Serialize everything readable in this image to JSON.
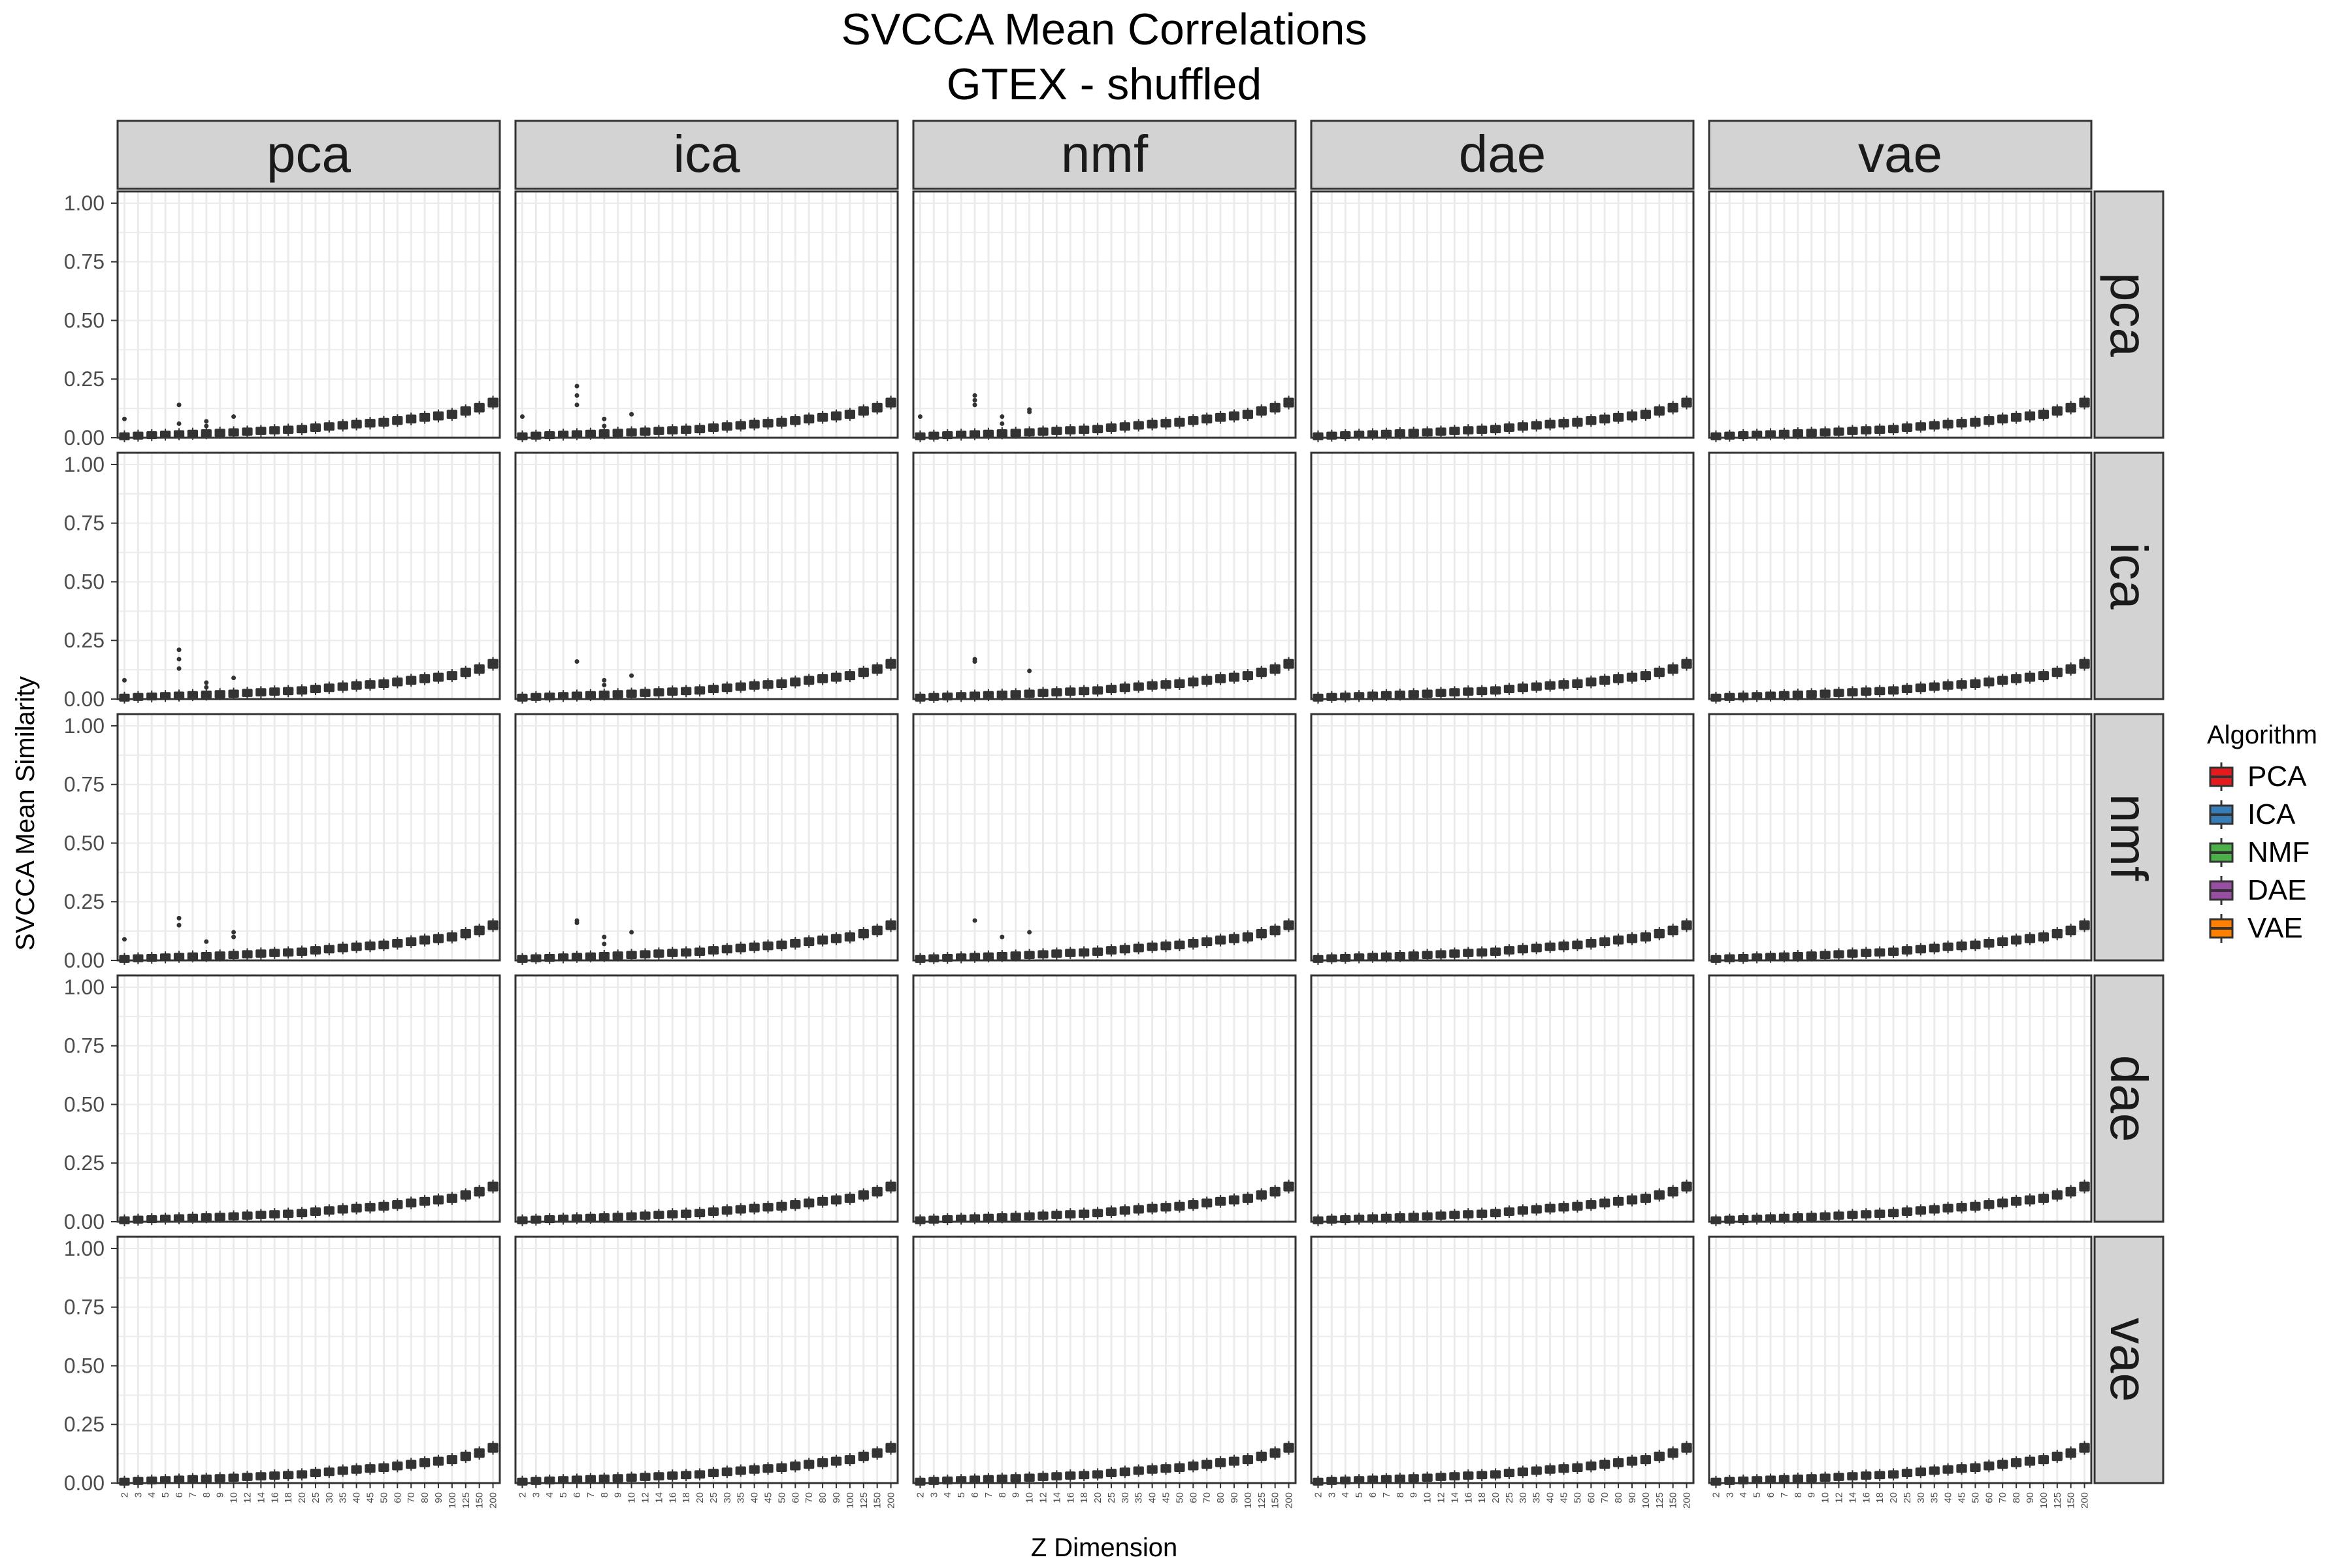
{
  "chart_data": {
    "type": "box",
    "title": "SVCCA Mean Correlations",
    "subtitle": "GTEX - shuffled",
    "xlabel": "Z Dimension",
    "ylabel": "SVCCA Mean Similarity",
    "ylim": [
      0,
      1.05
    ],
    "y_ticks": [
      "0.00",
      "0.25",
      "0.50",
      "0.75",
      "1.00"
    ],
    "y_tick_values": [
      0,
      0.25,
      0.5,
      0.75,
      1.0
    ],
    "grid": true,
    "legend_position": "right",
    "column_facets": [
      "pca",
      "ica",
      "nmf",
      "dae",
      "vae"
    ],
    "row_facets": [
      "pca",
      "ica",
      "nmf",
      "dae",
      "vae"
    ],
    "z_dimensions": [
      "2",
      "3",
      "4",
      "5",
      "6",
      "7",
      "8",
      "9",
      "10",
      "12",
      "14",
      "16",
      "18",
      "20",
      "25",
      "30",
      "35",
      "40",
      "45",
      "50",
      "60",
      "70",
      "80",
      "90",
      "100",
      "125",
      "150",
      "200"
    ],
    "median_similarity": [
      0.006,
      0.009,
      0.011,
      0.013,
      0.015,
      0.017,
      0.019,
      0.021,
      0.023,
      0.026,
      0.029,
      0.032,
      0.034,
      0.037,
      0.043,
      0.048,
      0.053,
      0.058,
      0.062,
      0.066,
      0.073,
      0.08,
      0.087,
      0.093,
      0.1,
      0.114,
      0.128,
      0.15
    ],
    "outliers": [
      {
        "row": "pca",
        "col": "pca",
        "points": [
          [
            "2",
            0.08
          ],
          [
            "6",
            0.14
          ],
          [
            "6",
            0.06
          ],
          [
            "8",
            0.07
          ],
          [
            "8",
            0.05
          ],
          [
            "10",
            0.09
          ]
        ]
      },
      {
        "row": "pca",
        "col": "ica",
        "points": [
          [
            "2",
            0.09
          ],
          [
            "6",
            0.22
          ],
          [
            "6",
            0.18
          ],
          [
            "6",
            0.14
          ],
          [
            "8",
            0.08
          ],
          [
            "8",
            0.05
          ],
          [
            "10",
            0.1
          ]
        ]
      },
      {
        "row": "pca",
        "col": "nmf",
        "points": [
          [
            "2",
            0.09
          ],
          [
            "6",
            0.18
          ],
          [
            "6",
            0.16
          ],
          [
            "6",
            0.14
          ],
          [
            "8",
            0.09
          ],
          [
            "8",
            0.06
          ],
          [
            "10",
            0.12
          ],
          [
            "10",
            0.11
          ]
        ]
      },
      {
        "row": "ica",
        "col": "pca",
        "points": [
          [
            "2",
            0.08
          ],
          [
            "6",
            0.21
          ],
          [
            "6",
            0.17
          ],
          [
            "6",
            0.13
          ],
          [
            "8",
            0.07
          ],
          [
            "8",
            0.05
          ],
          [
            "10",
            0.09
          ]
        ]
      },
      {
        "row": "ica",
        "col": "ica",
        "points": [
          [
            "6",
            0.16
          ],
          [
            "8",
            0.08
          ],
          [
            "8",
            0.06
          ],
          [
            "10",
            0.1
          ]
        ]
      },
      {
        "row": "ica",
        "col": "nmf",
        "points": [
          [
            "6",
            0.17
          ],
          [
            "6",
            0.16
          ],
          [
            "10",
            0.12
          ]
        ]
      },
      {
        "row": "nmf",
        "col": "pca",
        "points": [
          [
            "2",
            0.09
          ],
          [
            "6",
            0.18
          ],
          [
            "6",
            0.15
          ],
          [
            "8",
            0.08
          ],
          [
            "10",
            0.12
          ],
          [
            "10",
            0.1
          ]
        ]
      },
      {
        "row": "nmf",
        "col": "ica",
        "points": [
          [
            "6",
            0.17
          ],
          [
            "6",
            0.16
          ],
          [
            "8",
            0.1
          ],
          [
            "8",
            0.07
          ],
          [
            "10",
            0.12
          ]
        ]
      },
      {
        "row": "nmf",
        "col": "nmf",
        "points": [
          [
            "6",
            0.17
          ],
          [
            "8",
            0.1
          ],
          [
            "10",
            0.12
          ]
        ]
      }
    ],
    "legend": {
      "title": "Algorithm",
      "items": [
        {
          "label": "PCA",
          "color": "#e41a1c"
        },
        {
          "label": "ICA",
          "color": "#377eb8"
        },
        {
          "label": "NMF",
          "color": "#4daf4a"
        },
        {
          "label": "DAE",
          "color": "#984ea3"
        },
        {
          "label": "VAE",
          "color": "#ff7f00"
        }
      ]
    }
  },
  "colors": {
    "panel_border": "#333333",
    "strip_fill": "#d3d3d3",
    "grid_line": "#ebebeb",
    "box_fill": "#333333",
    "tick_text": "#4d4d4d"
  }
}
